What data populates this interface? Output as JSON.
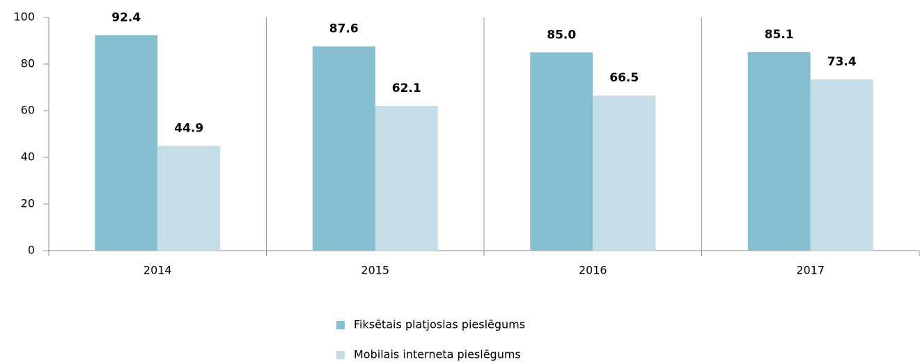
{
  "chart_data": {
    "type": "bar",
    "categories": [
      "2014",
      "2015",
      "2016",
      "2017"
    ],
    "series": [
      {
        "name": "Fiksētais platjoslas pieslēgums",
        "color": "#86bfd1",
        "values": [
          92.4,
          87.6,
          85.0,
          85.1
        ],
        "value_labels": [
          "92.4",
          "87.6",
          "85.0",
          "85.1"
        ]
      },
      {
        "name": "Mobilais interneta pieslēgums",
        "color": "#c5dde6",
        "values": [
          44.9,
          62.1,
          66.5,
          73.4
        ],
        "value_labels": [
          "44.9",
          "62.1",
          "66.5",
          "73.4"
        ]
      }
    ],
    "ylim": [
      0,
      100
    ],
    "yticks": [
      0,
      20,
      40,
      60,
      80,
      100
    ],
    "grid": false,
    "legend": "bottom"
  }
}
